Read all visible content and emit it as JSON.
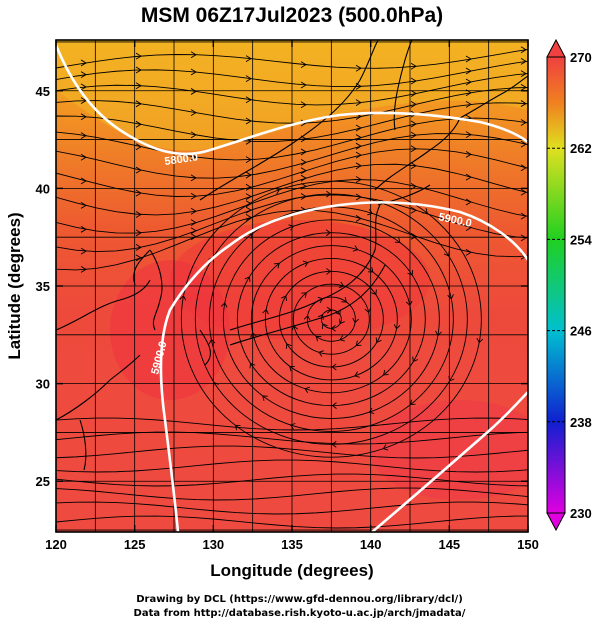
{
  "title": "MSM 06Z17Jul2023 (500.0hPa)",
  "x_axis": {
    "label": "Longitude (degrees)",
    "ticks": [
      120,
      125,
      130,
      135,
      140,
      145,
      150
    ],
    "range": [
      120,
      150
    ]
  },
  "y_axis": {
    "label": "Latitude  (degrees)",
    "ticks": [
      25,
      30,
      35,
      40,
      45
    ],
    "range": [
      22.4,
      47.6
    ]
  },
  "colorbar": {
    "ticks": [
      230,
      238,
      246,
      254,
      262,
      270
    ],
    "range": [
      230,
      270
    ],
    "colors": [
      "#e000e0",
      "#1020d0",
      "#00c0d0",
      "#20d020",
      "#e0e020",
      "#f08020",
      "#f04040"
    ]
  },
  "contours": {
    "labels": [
      "5800.0",
      "5900.0",
      "5900.0"
    ]
  },
  "credits": {
    "line1": "Drawing by DCL (https://www.gfd-dennou.org/library/dcl/)",
    "line2": "Data from http://database.rish.kyoto-u.ac.jp/arch/jmadata/"
  }
}
